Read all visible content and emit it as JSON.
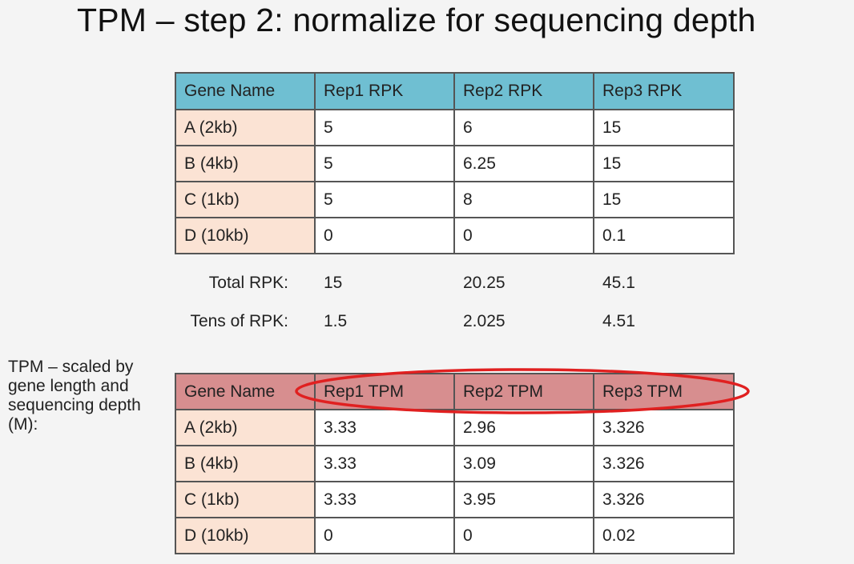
{
  "slide": {
    "title": "TPM – step 2: normalize for sequencing depth"
  },
  "rpk_table": {
    "headers": [
      "Gene Name",
      "Rep1 RPK",
      "Rep2 RPK",
      "Rep3 RPK"
    ],
    "rows": [
      [
        "A (2kb)",
        "5",
        "6",
        "15"
      ],
      [
        "B (4kb)",
        "5",
        "6.25",
        "15"
      ],
      [
        "C (1kb)",
        "5",
        "8",
        "15"
      ],
      [
        "D (10kb)",
        "0",
        "0",
        "0.1"
      ]
    ],
    "header_color": "#6fbfd2",
    "gene_cell_color": "#fbe3d4"
  },
  "totals": {
    "total_label": "Total RPK:",
    "total_values": [
      "15",
      "20.25",
      "45.1"
    ],
    "tens_label": "Tens of RPK:",
    "tens_values": [
      "1.5",
      "2.025",
      "4.51"
    ]
  },
  "side_note": {
    "text": "TPM – scaled by gene length and sequencing depth (M):"
  },
  "tpm_table": {
    "headers": [
      "Gene Name",
      "Rep1 TPM",
      "Rep2 TPM",
      "Rep3 TPM"
    ],
    "rows": [
      [
        "A (2kb)",
        "3.33",
        "2.96",
        "3.326"
      ],
      [
        "B (4kb)",
        "3.33",
        "3.09",
        "3.326"
      ],
      [
        "C (1kb)",
        "3.33",
        "3.95",
        "3.326"
      ],
      [
        "D (10kb)",
        "0",
        "0",
        "0.02"
      ]
    ],
    "header_color": "#d78e8f",
    "highlight_color": "#e02020"
  }
}
